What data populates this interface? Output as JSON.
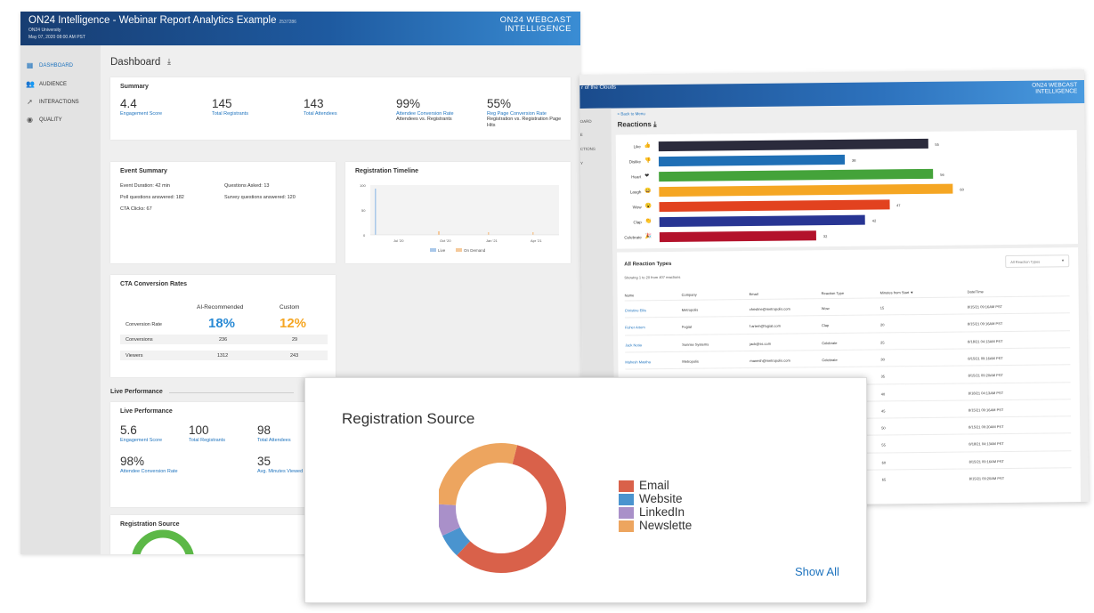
{
  "dashboard": {
    "header": {
      "title": "ON24 Intelligence - Webinar Report Analytics Example",
      "event_id": "2537286",
      "org": "ON24 University",
      "date": "May 07, 2020 08:00 AM PST",
      "brand_line1": "ON24 WEBCAST",
      "brand_line2": "INTELLIGENCE"
    },
    "sidebar": {
      "items": [
        {
          "label": "DASHBOARD",
          "icon": "grid-icon"
        },
        {
          "label": "AUDIENCE",
          "icon": "people-icon"
        },
        {
          "label": "INTERACTIONS",
          "icon": "cursor-icon"
        },
        {
          "label": "QUALITY",
          "icon": "gauge-icon"
        }
      ]
    },
    "page_title": "Dashboard",
    "summary": {
      "title": "Summary",
      "metrics": [
        {
          "value": "4.4",
          "label": "Engagement Score",
          "note": ""
        },
        {
          "value": "145",
          "label": "Total Registrants",
          "note": ""
        },
        {
          "value": "143",
          "label": "Total Attendees",
          "note": ""
        },
        {
          "value": "99%",
          "label": "Attendee Conversion Rate",
          "note": "Attendees vs. Registrants"
        },
        {
          "value": "55%",
          "label": "Reg Page Conversion Rate",
          "note": "Registration vs. Registration Page Hits"
        }
      ]
    },
    "event_summary": {
      "title": "Event Summary",
      "duration": "Event Duration: 42 min",
      "questions": "Questions Asked: 13",
      "poll": "Poll questions answered: 182",
      "survey": "Survey questions answered: 120",
      "cta": "CTA Clicks: 67"
    },
    "registration_timeline": {
      "title": "Registration Timeline",
      "y_ticks": [
        "100",
        "50",
        "0"
      ],
      "x_ticks": [
        "Jul '20",
        "Oct '20",
        "Jan '21",
        "Apr '21"
      ],
      "legend": [
        "Live",
        "On Demand"
      ],
      "colors": {
        "live": "#a9c8ea",
        "on_demand": "#f5c99a"
      }
    },
    "cta_conversion": {
      "title": "CTA Conversion Rates",
      "col_ai": "AI-Recommended",
      "col_custom": "Custom",
      "rate_label": "Conversion Rate",
      "rate_ai": "18%",
      "rate_custom": "12%",
      "rows": [
        {
          "label": "Conversions",
          "ai": "236",
          "custom": "29"
        },
        {
          "label": "Viewers",
          "ai": "1312",
          "custom": "243"
        }
      ],
      "colors": {
        "ai": "#2a8ad4",
        "custom": "#f5a623"
      }
    },
    "live_performance": {
      "section_title": "Live Performance",
      "card_title": "Live Performance",
      "metrics": [
        {
          "value": "5.6",
          "label": "Engagement Score"
        },
        {
          "value": "100",
          "label": "Total Registrants"
        },
        {
          "value": "98",
          "label": "Total Attendees"
        },
        {
          "value": "98%",
          "label": "Attendee Conversion Rate"
        },
        {
          "value": "35",
          "label": "Avg. Minutes Viewed"
        }
      ]
    },
    "reg_source_card_title": "Registration Source"
  },
  "reactions": {
    "header_title": "r of the Clouds",
    "brand_line1": "ON24 WEBCAST",
    "brand_line2": "INTELLIGENCE",
    "sidebar_fragments": [
      "OARD",
      "E",
      "CTIONS",
      "Y"
    ],
    "back_link": "< Back to Menu",
    "title": "Reactions",
    "chart_data": {
      "type": "bar",
      "orientation": "horizontal",
      "categories": [
        "Like",
        "Dislike",
        "Heart",
        "Laugh",
        "Wow",
        "Clap",
        "Celebrate"
      ],
      "values": [
        55,
        38,
        56,
        60,
        47,
        42,
        32
      ],
      "value_labels": [
        "55",
        "38",
        "56",
        "60",
        "47",
        "42",
        "32"
      ],
      "colors": [
        "#2b2b3c",
        "#1f6fb5",
        "#44a33a",
        "#f5a623",
        "#e2421f",
        "#283593",
        "#b3122b"
      ],
      "emoji": [
        "👍",
        "👎",
        "❤",
        "😄",
        "😮",
        "👏",
        "🎉"
      ]
    },
    "table": {
      "title": "All Reaction Types",
      "showing": "Showing 1 to 20 from 407 reactions",
      "filter": "All Reaction Types",
      "headers": [
        "Name",
        "Company",
        "Email",
        "Reaction Type",
        "Minutes from Start ▼",
        "Date/Time"
      ],
      "rows": [
        {
          "name": "Christine Ellis",
          "company": "Metropolis",
          "email": "christine@metropolis.com",
          "type": "Wow",
          "minutes": "15",
          "date": "8/15/21 09:16AM PST"
        },
        {
          "name": "Fisher Artem",
          "company": "Fugiat",
          "email": "f.artem@fugiat.com",
          "type": "Clap",
          "minutes": "20",
          "date": "8/15/21 09:16AM PST"
        },
        {
          "name": "Jack Notia",
          "company": "Sunrise Systems",
          "email": "jack@ss.com",
          "type": "Celebrate",
          "minutes": "25",
          "date": "8/18/21 04:13AM PST"
        },
        {
          "name": "Mahesh Mastha",
          "company": "Metropolis",
          "email": "manesh@metropolis.com",
          "type": "Celebrate",
          "minutes": "30",
          "date": "8/15/21 09:16AM PST"
        },
        {
          "name": "",
          "company": "",
          "email": "",
          "type": "",
          "minutes": "35",
          "date": "8/15/21 09:20AM PST"
        },
        {
          "name": "",
          "company": "",
          "email": "",
          "type": "",
          "minutes": "40",
          "date": "8/18/21 04:13AM PST"
        },
        {
          "name": "",
          "company": "",
          "email": "",
          "type": "",
          "minutes": "45",
          "date": "8/15/21 09:16AM PST"
        },
        {
          "name": "",
          "company": "",
          "email": "",
          "type": "",
          "minutes": "50",
          "date": "8/15/21 09:20AM PST"
        },
        {
          "name": "",
          "company": "",
          "email": "",
          "type": "",
          "minutes": "55",
          "date": "8/18/21 04:13AM PST"
        },
        {
          "name": "",
          "company": "",
          "email": "",
          "type": "",
          "minutes": "60",
          "date": "8/15/21 09:16AM PST"
        },
        {
          "name": "",
          "company": "",
          "email": "",
          "type": "",
          "minutes": "65",
          "date": "8/15/21 09:20AM PST"
        }
      ]
    }
  },
  "registration_source": {
    "title": "Registration Source",
    "show_all": "Show All",
    "chart_data": {
      "type": "pie",
      "donut": true,
      "categories": [
        "Email",
        "Website",
        "LinkedIn",
        "Newslette"
      ],
      "values": [
        58,
        6,
        8,
        28
      ],
      "colors": [
        "#d9614a",
        "#4a94cf",
        "#a990c9",
        "#eda55f"
      ]
    }
  }
}
